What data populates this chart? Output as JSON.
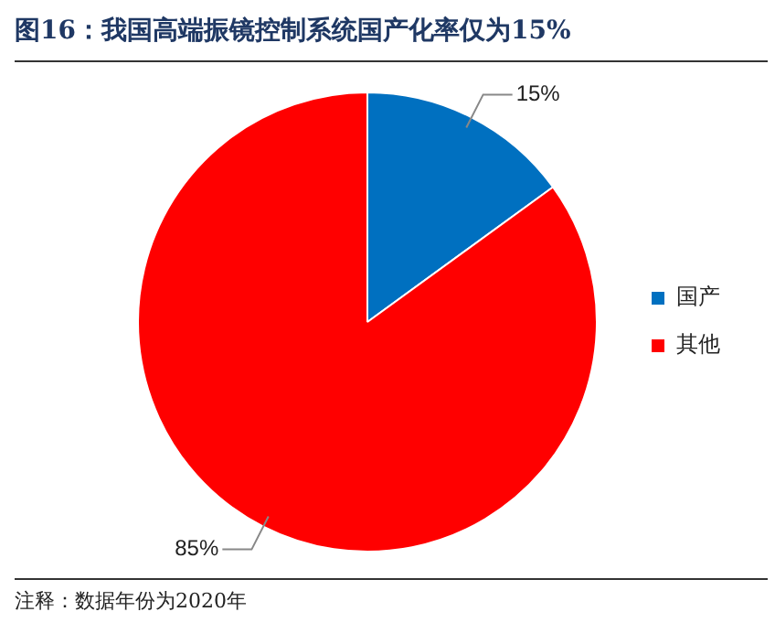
{
  "chart_data": {
    "type": "pie",
    "title": "图16：我国高端振镜控制系统国产化率仅为15%",
    "categories": [
      "国产",
      "其他"
    ],
    "values": [
      15,
      85
    ],
    "colors": [
      "#0070c0",
      "#ff0000"
    ],
    "value_labels": [
      "15%",
      "85%"
    ],
    "legend": "right",
    "annotations": [
      "注释：数据年份为2020年"
    ]
  }
}
